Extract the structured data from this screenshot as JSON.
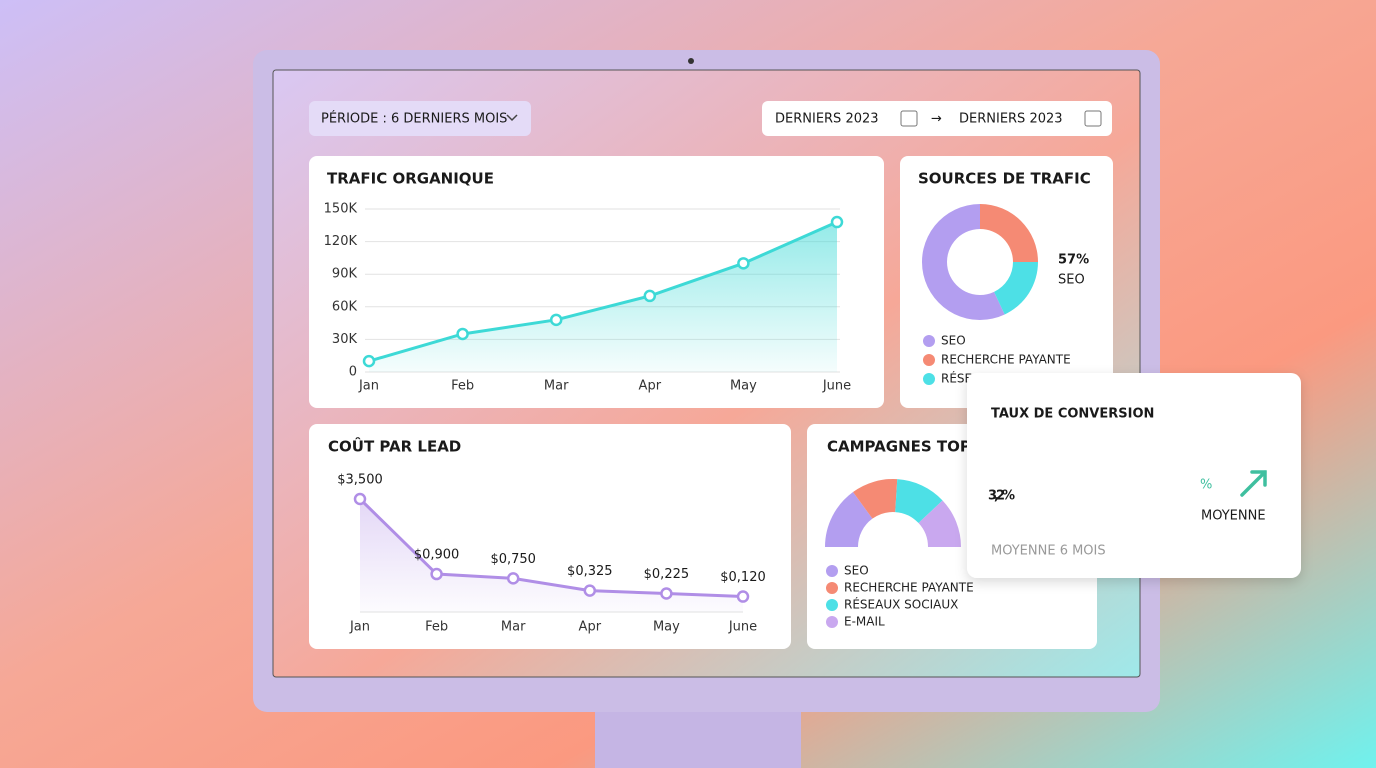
{
  "toolbar": {
    "period": "PÉRIODE : 6 DERNIERS MOIS",
    "date_from": "DERNIERS 2023",
    "date_to": "DERNIERS 2023"
  },
  "chart_data": [
    {
      "type": "line",
      "title": "TRAFIC ORGANIQUE",
      "categories": [
        "Jan",
        "Feb",
        "Mar",
        "Apr",
        "May",
        "June"
      ],
      "values": [
        10000,
        35000,
        48000,
        70000,
        100000,
        138000
      ],
      "color": "#3dd9d6",
      "ylim": [
        0,
        150000
      ],
      "yticks": [
        0,
        {
          "value": 30000,
          "label": "30K"
        },
        {
          "value": 60000,
          "label": "60K"
        },
        {
          "value": 90000,
          "label": "90K"
        },
        {
          "value": 120000,
          "label": "120K"
        },
        {
          "value": 150000,
          "label": "150K"
        }
      ],
      "grid": true
    },
    {
      "type": "donut",
      "title": "SOURCES DE TRAFIC",
      "annotation": "57%",
      "annotation_label": "SEO",
      "categories": [
        "SEO",
        "RECHERCHE PAYANTE",
        "RÉSEAUX SOCIAUX"
      ],
      "values": [
        57,
        25,
        18
      ],
      "colors": [
        "#b39ef0",
        "#f58a74",
        "#4de0e6"
      ]
    },
    {
      "type": "line",
      "title": "COÛT PAR LEAD",
      "categories": [
        "Jan",
        "Feb",
        "Mar",
        "Apr",
        "May",
        "June"
      ],
      "values": [
        3.5,
        0.9,
        0.75,
        0.325,
        0.225,
        0.12
      ],
      "value_labels": [
        "$3,500",
        "$0,900",
        "$0,750",
        "$0,325",
        "$0,225",
        "$0,120"
      ],
      "color": "#b08ee6"
    },
    {
      "type": "semi-donut",
      "title": "CAMPAGNES TOP",
      "categories": [
        "SEO",
        "RECHERCHE PAYANTE",
        "RÉSEAUX SOCIAUX",
        "E-MAIL"
      ],
      "values": [
        30,
        22,
        24,
        24
      ],
      "colors": [
        "#b39ef0",
        "#f58a74",
        "#4de0e6",
        "#c9a8ef"
      ]
    }
  ],
  "conversion_card": {
    "title": "TAUX DE CONVERSION",
    "value": "3,2%",
    "unit": "%",
    "trend_label": "MOYENNE",
    "caption": "MOYENNE 6 MOIS"
  }
}
